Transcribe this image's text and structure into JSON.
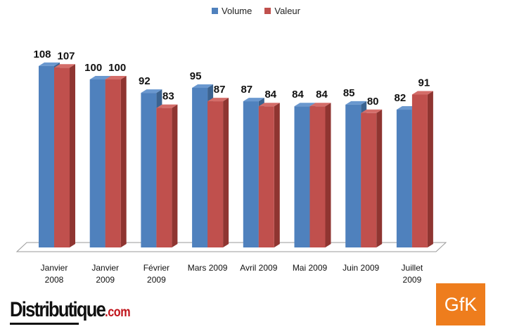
{
  "chart_data": {
    "type": "bar",
    "categories": [
      [
        "Janvier",
        "2008"
      ],
      [
        "Janvier",
        "2009"
      ],
      [
        "Février",
        "2009"
      ],
      [
        "Mars 2009"
      ],
      [
        "Avril 2009"
      ],
      [
        "Mai 2009"
      ],
      [
        "Juin 2009"
      ],
      [
        "Juillet",
        "2009"
      ]
    ],
    "series": [
      {
        "name": "Volume",
        "color": "#4f81bd",
        "values": [
          108,
          100,
          92,
          95,
          87,
          84,
          85,
          82
        ]
      },
      {
        "name": "Valeur",
        "color": "#c0504d",
        "values": [
          107,
          100,
          83,
          87,
          84,
          84,
          80,
          91
        ]
      }
    ],
    "title": "",
    "xlabel": "",
    "ylabel": "",
    "ylim": [
      0,
      110
    ],
    "grid": false,
    "legend": "top-center"
  },
  "logos": {
    "left_brand": "Distributique",
    "left_tld": ".com",
    "right_brand": "GfK"
  }
}
